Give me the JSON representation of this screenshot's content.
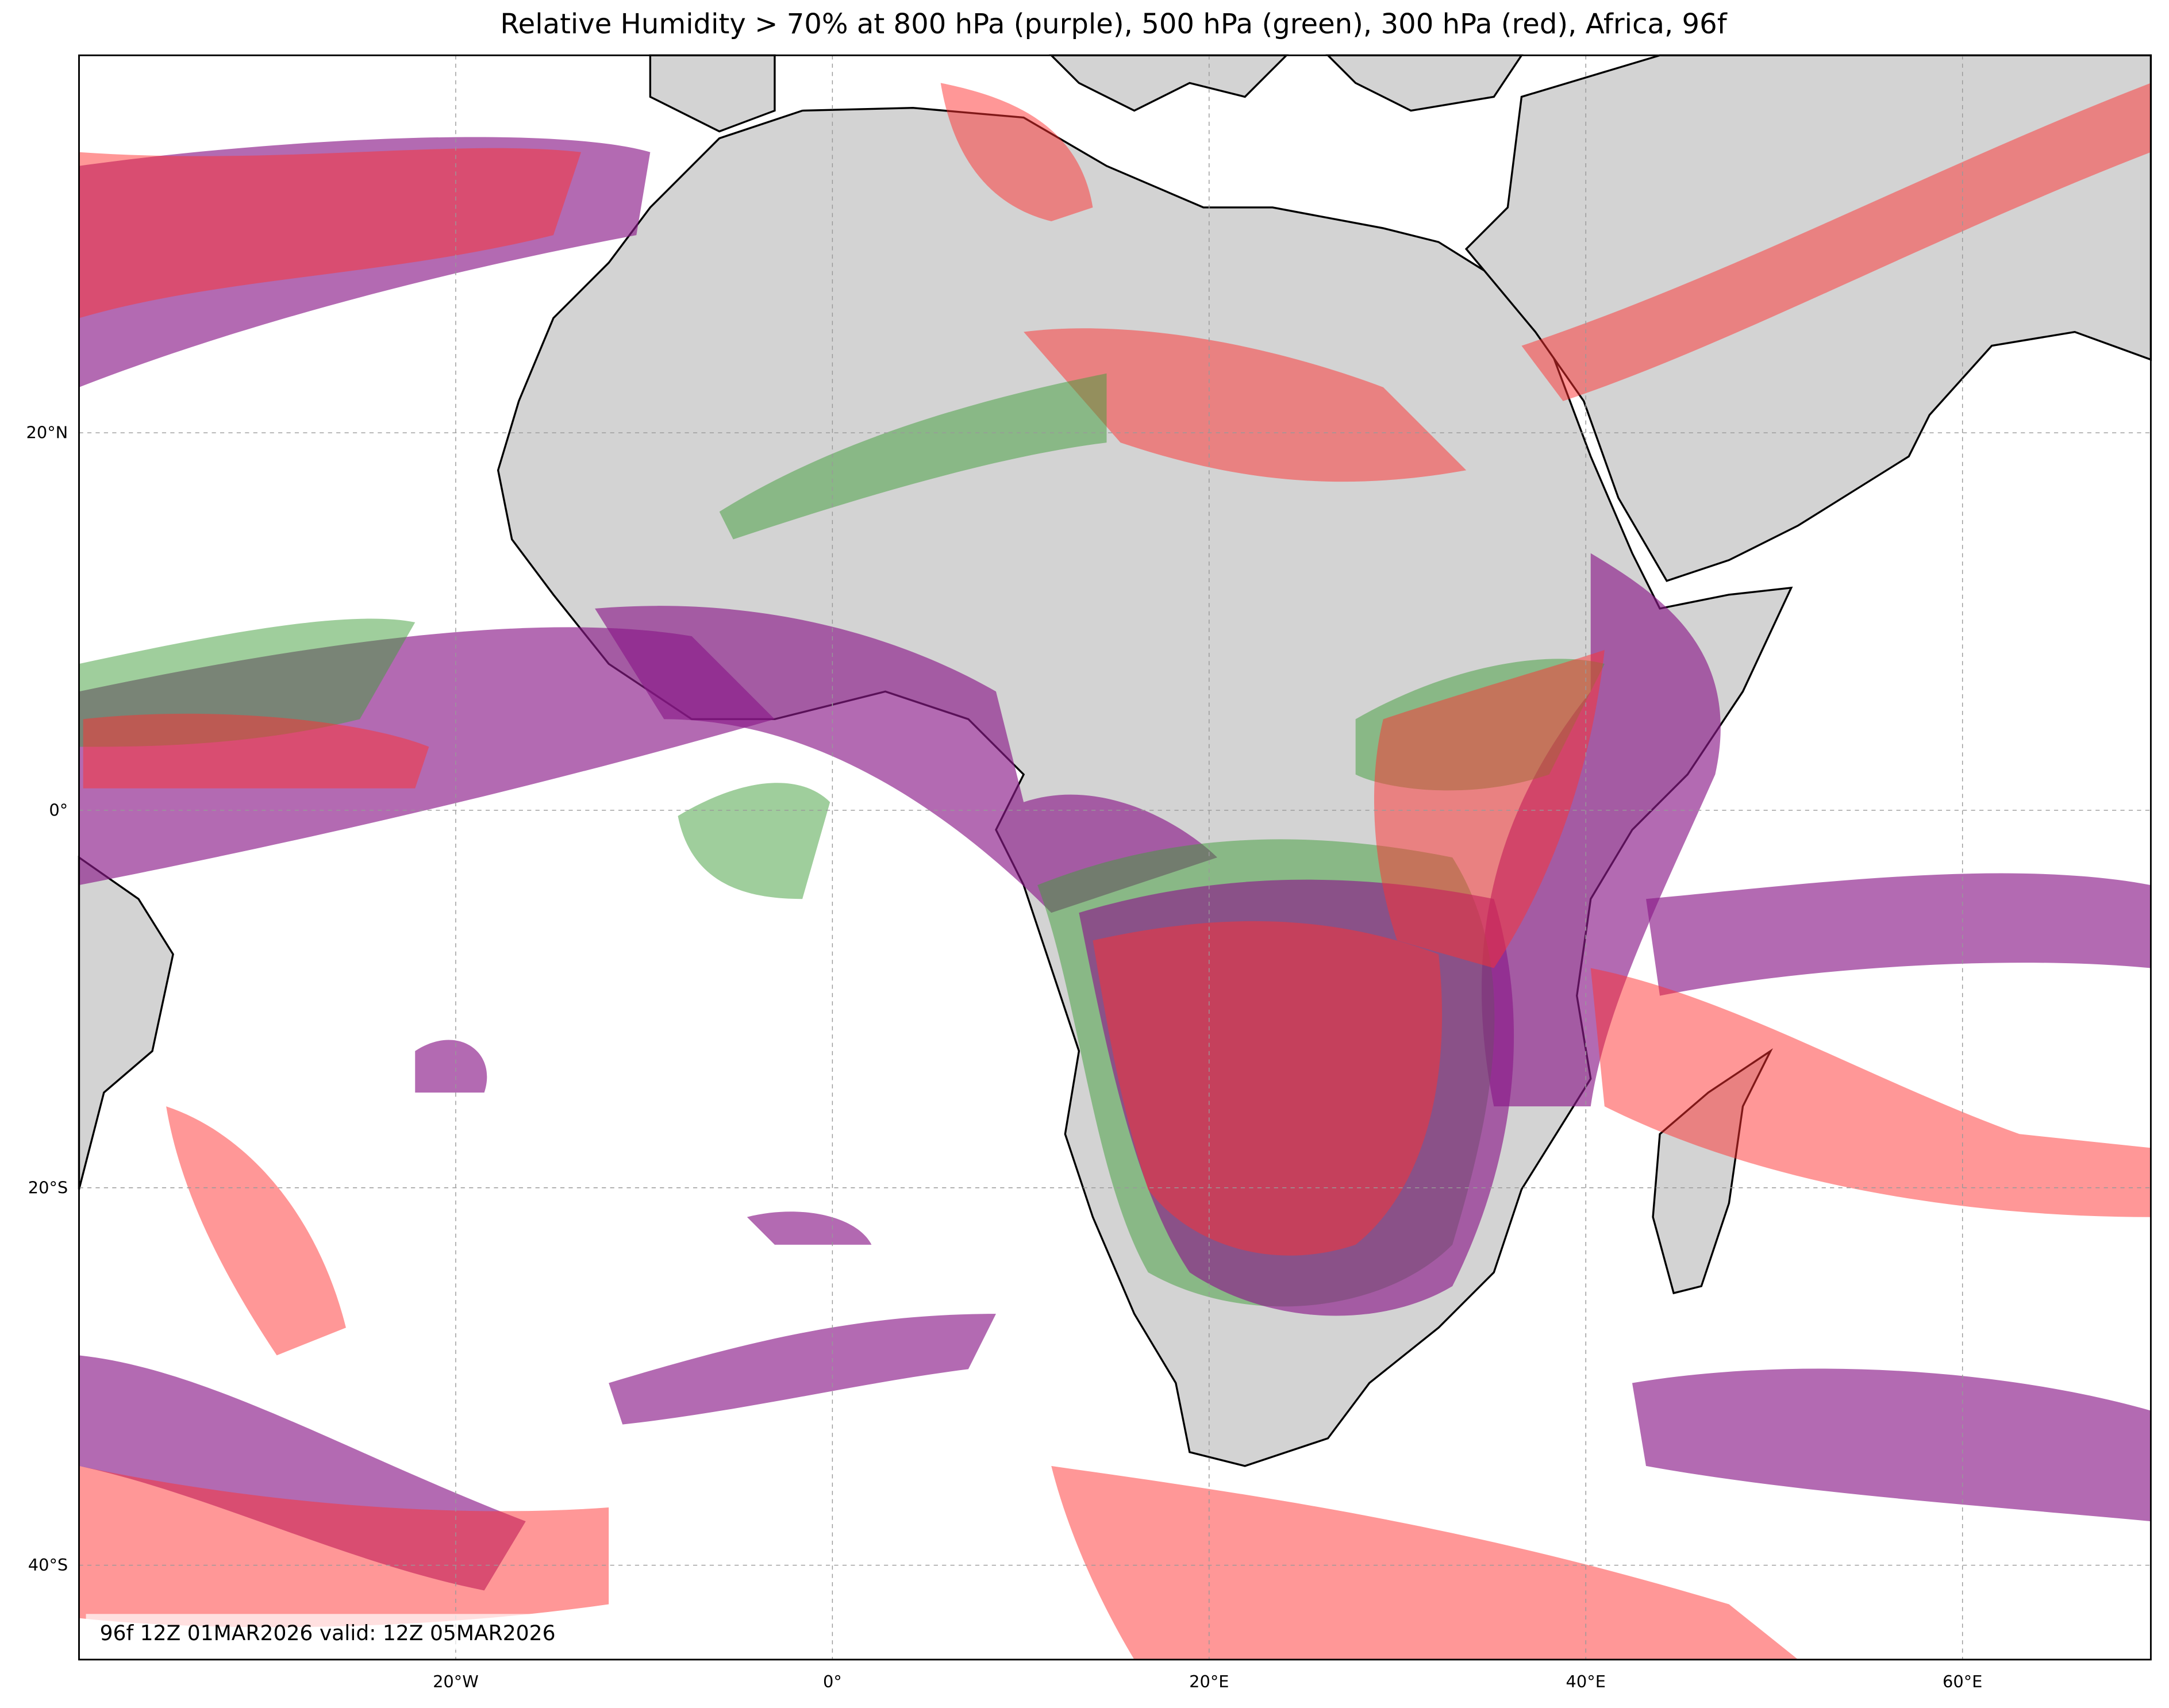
{
  "title": "Relative Humidity > 70% at 800 hPa (purple), 500 hPa (green), 300 hPa (red), Africa, 96f",
  "annotation": "96f 12Z 01MAR2026 valid: 12Z 05MAR2026",
  "map": {
    "projection": "PlateCarree",
    "xlim": [
      -40,
      70
    ],
    "ylim": [
      -45,
      40
    ],
    "grid": true,
    "xticks": [
      {
        "value": -20,
        "label": "20°W"
      },
      {
        "value": 0,
        "label": "0°"
      },
      {
        "value": 20,
        "label": "20°E"
      },
      {
        "value": 40,
        "label": "40°E"
      },
      {
        "value": 60,
        "label": "60°E"
      }
    ],
    "yticks": [
      {
        "value": 20,
        "label": "20°N"
      },
      {
        "value": 0,
        "label": "0°"
      },
      {
        "value": -20,
        "label": "20°S"
      },
      {
        "value": -40,
        "label": "40°S"
      }
    ]
  }
}
